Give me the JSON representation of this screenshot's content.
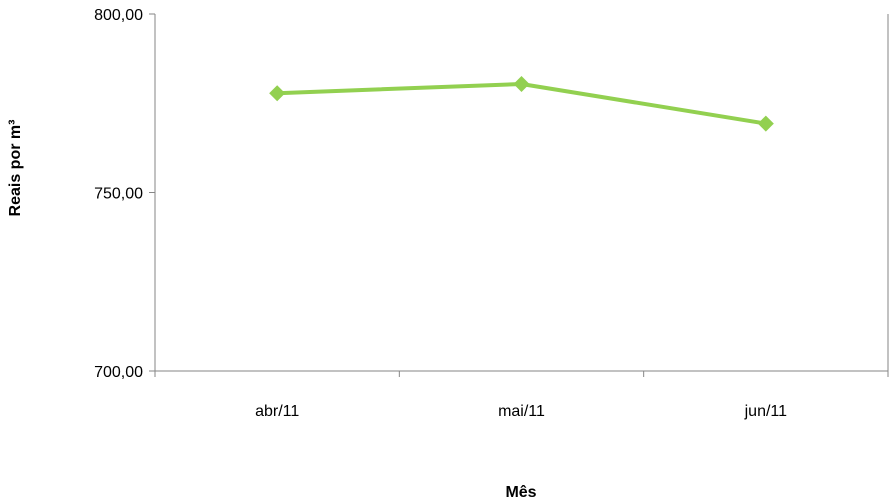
{
  "chart_data": {
    "type": "line",
    "title": "",
    "xlabel": "Mês",
    "ylabel": "Reais por  m³",
    "categories": [
      "abr/11",
      "mai/11",
      "jun/11"
    ],
    "series": [
      {
        "values": [
          777.8,
          780.4,
          769.3
        ]
      }
    ],
    "ylim": [
      700,
      800
    ],
    "yticks": [
      700,
      750,
      800
    ],
    "ytick_labels": [
      "700,00",
      "750,00",
      "800,00"
    ],
    "grid": false,
    "legend": "none",
    "series_color": "#92D050",
    "marker": "diamond"
  }
}
